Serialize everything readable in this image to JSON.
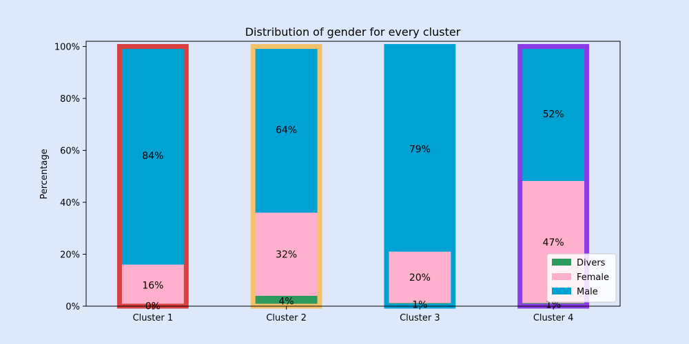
{
  "chart_data": {
    "type": "bar",
    "stacked": true,
    "title": "Distribution of gender for every cluster",
    "xlabel": "",
    "ylabel": "Percentage",
    "ylim": [
      0,
      1.02
    ],
    "yticks": [
      {
        "value": 0,
        "label": "0%"
      },
      {
        "value": 0.2,
        "label": "20%"
      },
      {
        "value": 0.4,
        "label": "40%"
      },
      {
        "value": 0.6,
        "label": "60%"
      },
      {
        "value": 0.8,
        "label": "80%"
      },
      {
        "value": 1.0,
        "label": "100%"
      }
    ],
    "categories": [
      "Cluster 1",
      "Cluster 2",
      "Cluster 3",
      "Cluster 4"
    ],
    "category_outline_colors": [
      "#d94040",
      "#f5c26b",
      "#00a2d3",
      "#8a3ce6"
    ],
    "series": [
      {
        "name": "Divers",
        "color": "#2e9b5e",
        "values": [
          0.002,
          0.04,
          0.012,
          0.012
        ],
        "labels": [
          "0%",
          "4%",
          "1%",
          "1%"
        ]
      },
      {
        "name": "Female",
        "color": "#ffb0cc",
        "values": [
          0.158,
          0.32,
          0.198,
          0.47
        ],
        "labels": [
          "16%",
          "32%",
          "20%",
          "47%"
        ]
      },
      {
        "name": "Male",
        "color": "#00a2d3",
        "values": [
          0.84,
          0.64,
          0.79,
          0.518
        ],
        "labels": [
          "84%",
          "64%",
          "79%",
          "52%"
        ]
      }
    ],
    "legend_position": "lower-right",
    "grid": false
  }
}
